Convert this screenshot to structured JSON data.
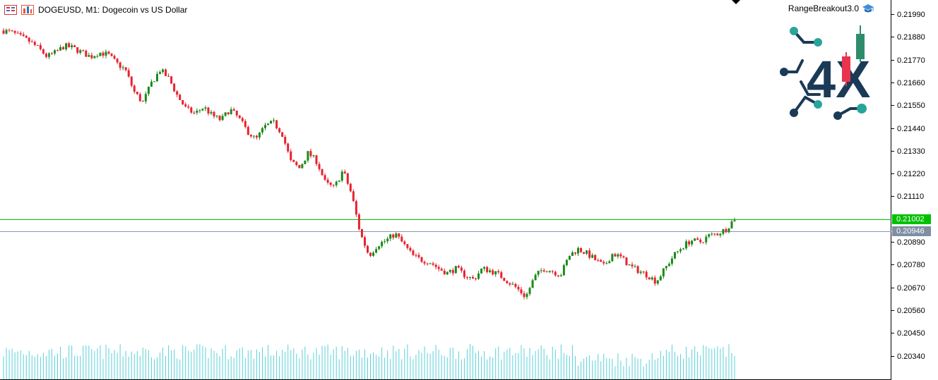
{
  "header": {
    "symbol_title": "DOGEUSD, M1:  Dogecoin vs US Dollar",
    "ea_name": "RangeBreakout3.0"
  },
  "logo": {
    "text": "4X"
  },
  "price_axis": {
    "ticks": [
      "0.21990",
      "0.21880",
      "0.21770",
      "0.21660",
      "0.21550",
      "0.21440",
      "0.21330",
      "0.21220",
      "0.21110",
      "0.20890",
      "0.20780",
      "0.20670",
      "0.20560",
      "0.20450",
      "0.20340"
    ]
  },
  "levels": {
    "upper": {
      "label": "0.21002",
      "value": 0.21002,
      "color": "#00c000"
    },
    "lower": {
      "label": "0.20946",
      "value": 0.20946,
      "color": "#8899aa"
    }
  },
  "colors": {
    "bull": "#1a8a1a",
    "bear": "#e8212e",
    "volume": "#5ad0d8"
  },
  "icons": [
    "chart-menu-icon",
    "indicator-icon",
    "graduation-cap-icon"
  ],
  "chart_data": {
    "type": "candlestick",
    "symbol": "DOGEUSD",
    "timeframe": "M1",
    "ylim": [
      0.2028,
      0.2202
    ],
    "path": [
      0.2188,
      0.2187,
      0.2185,
      0.2183,
      0.218,
      0.2176,
      0.2178,
      0.2181,
      0.218,
      0.2178,
      0.2176,
      0.2178,
      0.2177,
      0.2173,
      0.217,
      0.216,
      0.2155,
      0.2164,
      0.217,
      0.2166,
      0.2158,
      0.2152,
      0.215,
      0.2153,
      0.2149,
      0.2147,
      0.2152,
      0.2148,
      0.2142,
      0.2138,
      0.2144,
      0.2146,
      0.2141,
      0.2128,
      0.2125,
      0.2132,
      0.2128,
      0.2118,
      0.2116,
      0.2124,
      0.2113,
      0.2095,
      0.2085,
      0.209,
      0.2092,
      0.2095,
      0.209,
      0.2085,
      0.2083,
      0.2082,
      0.2079,
      0.2077,
      0.2079,
      0.2076,
      0.2074,
      0.2079,
      0.2078,
      0.2076,
      0.2073,
      0.207,
      0.2066,
      0.2075,
      0.2079,
      0.2078,
      0.2076,
      0.2085,
      0.2088,
      0.2086,
      0.2083,
      0.208,
      0.2086,
      0.2084,
      0.208,
      0.2078,
      0.2076,
      0.2073,
      0.2079,
      0.2085,
      0.2089,
      0.2092,
      0.2091,
      0.2094,
      0.2095,
      0.2097,
      0.2102
    ],
    "volume_profile": "low-high oscillating histogram along bottom"
  }
}
